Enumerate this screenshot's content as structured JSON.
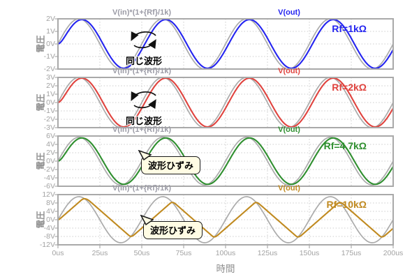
{
  "chart_data": {
    "type": "line",
    "title": "",
    "xlabel": "時間",
    "ylabel": "電圧",
    "x_ticks": [
      "0us",
      "25us",
      "50us",
      "75us",
      "100us",
      "125us",
      "150us",
      "175us",
      "200us"
    ],
    "x_range_us": [
      0,
      200
    ],
    "x_major_step_us": 25,
    "sine_period_us": 50,
    "input_amplitude_v": 1,
    "opamp_slew_v_per_us": 0.7,
    "opamp_lag_us": 2.0,
    "grid": true,
    "legend_position": "top",
    "frame_color": "#a9a9a9",
    "reference_trace": {
      "label": "V(in)*(1+{Rf}/1k)",
      "color": "#ababab"
    },
    "panels": [
      {
        "rf_label": "Rf=1kΩ",
        "gain": 2,
        "color": "#2424f0",
        "ylim": [
          -2,
          2
        ],
        "y_tick_labels": [
          "2V",
          "1V",
          "0V",
          "-1V",
          "-2V"
        ],
        "y_tick_values": [
          2,
          1,
          0,
          -1,
          -2
        ],
        "expr_label": "V(in)*(1+{Rf}/1k)",
        "out_label": "V(out)",
        "annotation": "同じ波形",
        "annotation_type": "same-waveform"
      },
      {
        "rf_label": "Rf=2kΩ",
        "gain": 3,
        "color": "#e0433e",
        "ylim": [
          -3,
          3
        ],
        "y_tick_labels": [
          "3V",
          "2V",
          "1V",
          "0V",
          "-1V",
          "-2V",
          "-3V"
        ],
        "y_tick_values": [
          3,
          2,
          1,
          0,
          -1,
          -2,
          -3
        ],
        "expr_label": "V(in)*(1+{Rf}/1k)",
        "out_label": "V(out)",
        "annotation": "同じ波形",
        "annotation_type": "same-waveform"
      },
      {
        "rf_label": "Rf=4.7kΩ",
        "gain": 5.7,
        "color": "#2f8f2f",
        "ylim": [
          -6,
          6
        ],
        "y_tick_labels": [
          "6V",
          "4V",
          "2V",
          "0V",
          "-2V",
          "-4V",
          "-6V"
        ],
        "y_tick_values": [
          6,
          4,
          2,
          0,
          -2,
          -4,
          -6
        ],
        "expr_label": "V(in)*(1+{Rf}/1k)",
        "out_label": "V(out)",
        "annotation": "波形ひずみ",
        "annotation_type": "distortion-callout"
      },
      {
        "rf_label": "Rf=10kΩ",
        "gain": 11,
        "color": "#c08a20",
        "ylim": [
          -12,
          12
        ],
        "y_tick_labels": [
          "12V",
          "8V",
          "4V",
          "0V",
          "-4V",
          "-8V",
          "-12V"
        ],
        "y_tick_values": [
          12,
          8,
          4,
          0,
          -4,
          -8,
          -12
        ],
        "expr_label": "V(in)*(1+{Rf}/1k)",
        "out_label": "V(out)",
        "annotation": "波形ひずみ",
        "annotation_type": "distortion-callout"
      }
    ]
  }
}
